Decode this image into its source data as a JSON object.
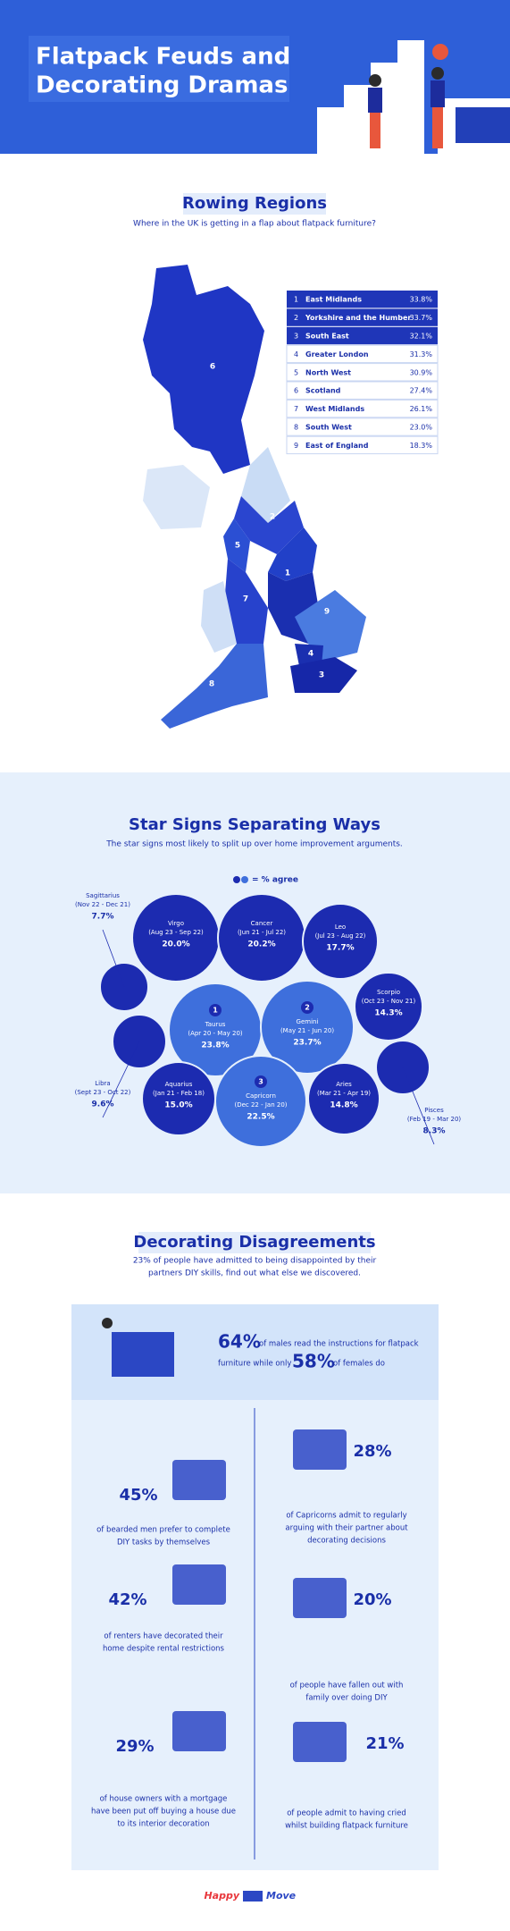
{
  "header": {
    "title_lines": [
      "Flatpack Feuds and",
      "Decorating Dramas"
    ]
  },
  "regions": {
    "title": "Rowing Regions",
    "subtitle": "Where in the UK is getting in a flap about flatpack furniture?",
    "table": [
      [
        "1",
        "East Midlands",
        "33.8%"
      ],
      [
        "2",
        "Yorkshire and the Humber",
        "33.7%"
      ],
      [
        "3",
        "South East",
        "32.1%"
      ],
      [
        "4",
        "Greater London",
        "31.3%"
      ],
      [
        "5",
        "North West",
        "30.9%"
      ],
      [
        "6",
        "Scotland",
        "27.4%"
      ],
      [
        "7",
        "West Midlands",
        "26.1%"
      ],
      [
        "8",
        "South West",
        "23.0%"
      ],
      [
        "9",
        "East of England",
        "18.3%"
      ]
    ],
    "map_labels": [
      "1",
      "2",
      "3",
      "4",
      "5",
      "6",
      "7",
      "8",
      "9"
    ]
  },
  "stars": {
    "title": "Star Signs Separating Ways",
    "subtitle": "The star signs most likely to split up over home improvement arguments.",
    "legend": "= % agree",
    "signs": [
      {
        "name": "Virgo",
        "dates": "(Aug 23 - Sep 22)",
        "value": "20.0%"
      },
      {
        "name": "Cancer",
        "dates": "(Jun 21 - Jul 22)",
        "value": "20.2%"
      },
      {
        "name": "Leo",
        "dates": "(Jul 23 - Aug 22)",
        "value": "17.7%"
      },
      {
        "name": "Sagittarius",
        "dates": "(Nov 22 - Dec 21)",
        "value": "7.7%"
      },
      {
        "name": "Taurus",
        "dates": "(Apr 20 - May 20)",
        "value": "23.8%",
        "rank": "1"
      },
      {
        "name": "Gemini",
        "dates": "(May 21 - Jun 20)",
        "value": "23.7%",
        "rank": "2"
      },
      {
        "name": "Scorpio",
        "dates": "(Oct 23 - Nov 21)",
        "value": "14.3%"
      },
      {
        "name": "Libra",
        "dates": "(Sept 23 - Oct 22)",
        "value": "9.6%"
      },
      {
        "name": "Pisces",
        "dates": "(Feb 19 - Mar 20)",
        "value": "8.3%"
      },
      {
        "name": "Aquarius",
        "dates": "(Jan 21 - Feb 18)",
        "value": "15.0%"
      },
      {
        "name": "Capricorn",
        "dates": "(Dec 22 - Jan 20)",
        "value": "22.5%",
        "rank": "3"
      },
      {
        "name": "Aries",
        "dates": "(Mar 21 - Apr 19)",
        "value": "14.8%"
      }
    ]
  },
  "disagreements": {
    "title": "Decorating Disagreements",
    "subtitle_lines": [
      "23% of people have admitted to being disappointed by their",
      "partners DIY skills, find out what else we discovered."
    ],
    "highlight": {
      "pct1": "64%",
      "text1": "of males read the instructions for flatpack",
      "text2": "furniture while only",
      "pct2": "58%",
      "text3": "of females do"
    },
    "stats": [
      {
        "value": "45%",
        "lines": [
          "of bearded men prefer to complete",
          "DIY tasks by themselves"
        ]
      },
      {
        "value": "28%",
        "lines": [
          "of Capricorns admit to regularly",
          "arguing with their partner about",
          "decorating decisions"
        ]
      },
      {
        "value": "42%",
        "lines": [
          "of renters have decorated their",
          "home despite rental restrictions"
        ]
      },
      {
        "value": "20%",
        "lines": [
          "of people have fallen out with",
          "family over doing DIY"
        ]
      },
      {
        "value": "29%",
        "lines": [
          "of house owners with a mortgage",
          "have been put off buying a house due",
          "to its interior decoration"
        ]
      },
      {
        "value": "21%",
        "lines": [
          "of people admit to having cried",
          "whilst building flatpack furniture"
        ]
      }
    ]
  },
  "footer": {
    "brand1": "Happy",
    "brand2": "Move"
  }
}
